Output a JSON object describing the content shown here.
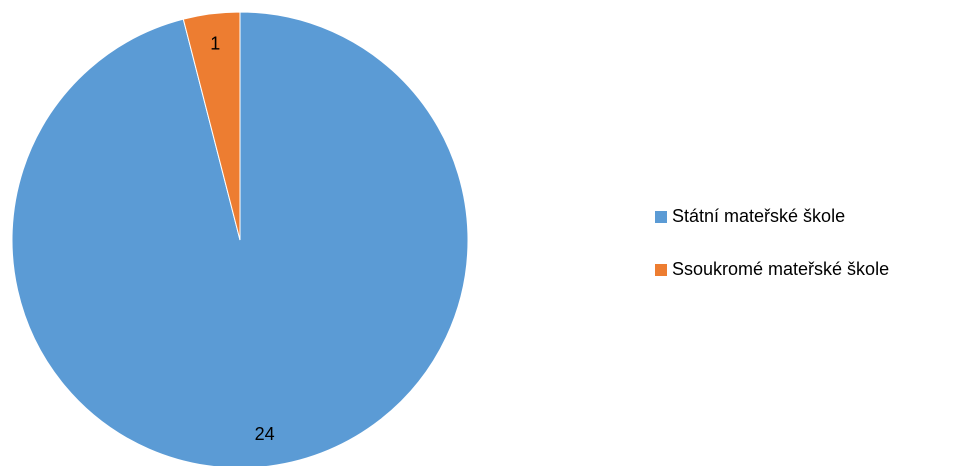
{
  "chart_data": {
    "type": "pie",
    "categories": [
      "Státní mateřské škole",
      "Ssoukromé mateřské škole"
    ],
    "values": [
      24,
      1
    ],
    "colors": [
      "#5b9bd5",
      "#ed7d31"
    ],
    "legend": "right"
  }
}
